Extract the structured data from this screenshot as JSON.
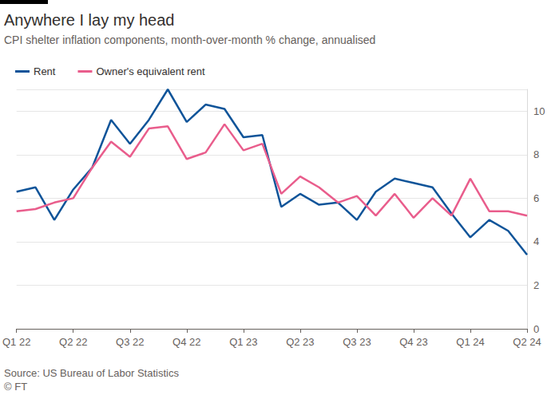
{
  "chart_data": {
    "type": "line",
    "title": "Anywhere I lay my head",
    "subtitle": "CPI shelter inflation components, month-over-month % change, annualised",
    "source": "Source: US Bureau of Labor Statistics",
    "credit": "© FT",
    "categories": [
      "Q1 22",
      null,
      null,
      "Q2 22",
      null,
      null,
      "Q3 22",
      null,
      null,
      "Q4 22",
      null,
      null,
      "Q1 23",
      null,
      null,
      "Q2 23",
      null,
      null,
      "Q3 23",
      null,
      null,
      "Q4 23",
      null,
      null,
      "Q1 24",
      null,
      null,
      "Q2 24"
    ],
    "series": [
      {
        "name": "Rent",
        "color": "#0f5499",
        "values": [
          6.3,
          6.5,
          5.0,
          6.4,
          7.4,
          9.6,
          8.5,
          9.6,
          11.0,
          9.5,
          10.3,
          10.1,
          8.8,
          8.9,
          5.6,
          6.2,
          5.7,
          5.8,
          5.0,
          6.3,
          6.9,
          6.7,
          6.5,
          5.3,
          4.2,
          5.0,
          4.5,
          3.4
        ]
      },
      {
        "name": "Owner's equivalent rent",
        "color": "#e95d8c",
        "values": [
          5.4,
          5.5,
          5.8,
          6.0,
          7.4,
          8.6,
          7.9,
          9.2,
          9.3,
          7.8,
          8.1,
          9.4,
          8.2,
          8.5,
          6.2,
          7.0,
          6.5,
          5.8,
          6.1,
          5.2,
          6.2,
          5.1,
          6.0,
          5.2,
          6.9,
          5.4,
          5.4,
          5.2
        ]
      }
    ],
    "ylim": [
      0,
      11
    ],
    "yticks": [
      0,
      2,
      4,
      6,
      8,
      10
    ],
    "grid": true,
    "legend": "top-left"
  }
}
